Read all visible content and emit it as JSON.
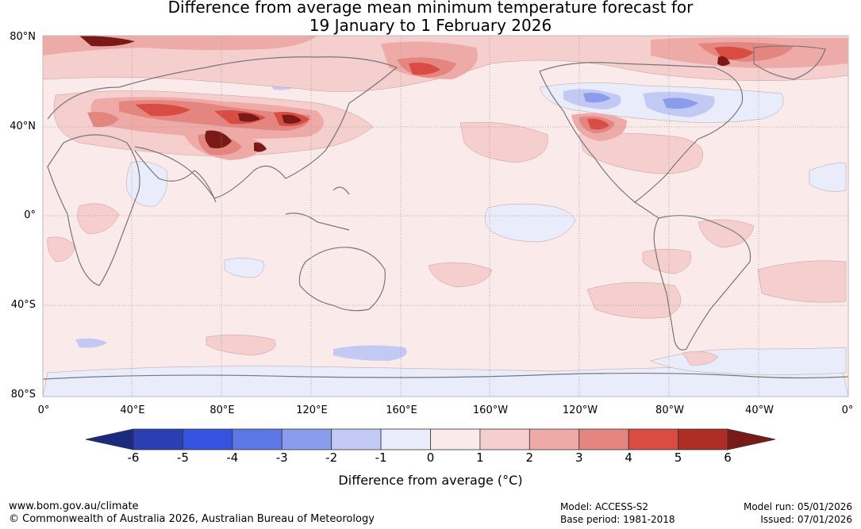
{
  "title": {
    "line1": "Difference from average mean minimum temperature forecast for",
    "line2": "19 January to 1 February 2026"
  },
  "map": {
    "lat_labels": [
      "80°N",
      "40°N",
      "0°",
      "40°S",
      "80°S"
    ],
    "lon_labels": [
      "0°",
      "40°E",
      "80°E",
      "120°E",
      "160°E",
      "160°W",
      "120°W",
      "80°W",
      "40°W",
      "0°"
    ],
    "gridline_color": "#999999",
    "coast_color": "#777777"
  },
  "colorbar": {
    "ticks": [
      "-6",
      "-5",
      "-4",
      "-3",
      "-2",
      "-1",
      "0",
      "1",
      "2",
      "3",
      "4",
      "5",
      "6"
    ],
    "colors": [
      "#1a2a80",
      "#2a3fb4",
      "#3552e0",
      "#5d77e6",
      "#8a9cec",
      "#c2caf3",
      "#e9ecfb",
      "#fbeaea",
      "#f4cfcd",
      "#eeaaa7",
      "#e58580",
      "#d94c42",
      "#b02d25",
      "#7a1a16"
    ],
    "label": "Difference from average (°C)"
  },
  "footer": {
    "website": "www.bom.gov.au/climate",
    "copyright": "© Commonwealth of Australia 2026, Australian Bureau of Meteorology",
    "model": "Model: ACCESS-S2",
    "base_period": "Base period: 1981-2018",
    "model_run": "Model run: 05/01/2026",
    "issued": "Issued: 07/01/2026"
  }
}
